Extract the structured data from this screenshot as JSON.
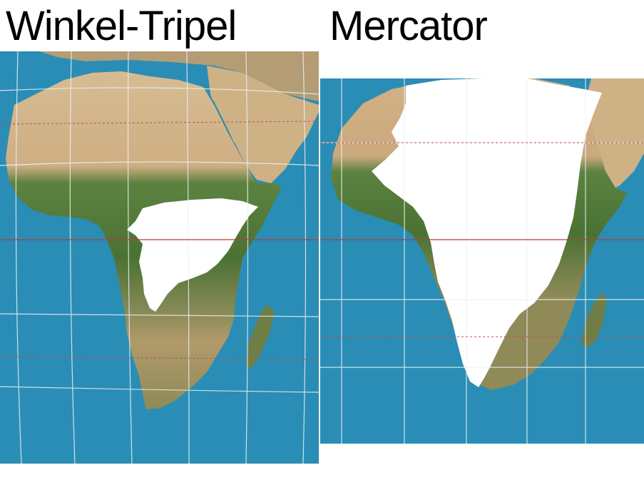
{
  "titles": {
    "left": "Winkel-Tripel",
    "right": "Mercator"
  },
  "maps": {
    "left": {
      "projection": "Winkel-Tripel",
      "features": [
        "africa-landmass",
        "arabian-peninsula",
        "madagascar",
        "greenland-overlay",
        "graticule",
        "equator-line",
        "tropic-lines"
      ]
    },
    "right": {
      "projection": "Mercator",
      "features": [
        "africa-landmass",
        "arabian-peninsula",
        "madagascar",
        "greenland-overlay",
        "graticule",
        "equator-line",
        "tropic-lines"
      ]
    }
  },
  "colors": {
    "ocean": "#2a8db5",
    "desert": "#d2b58c",
    "vegetation": "#4e7a3a",
    "ice": "#ffffff",
    "graticule": "#e8f2f6",
    "equator": "#b0403a",
    "tropic": "#c0504a"
  }
}
